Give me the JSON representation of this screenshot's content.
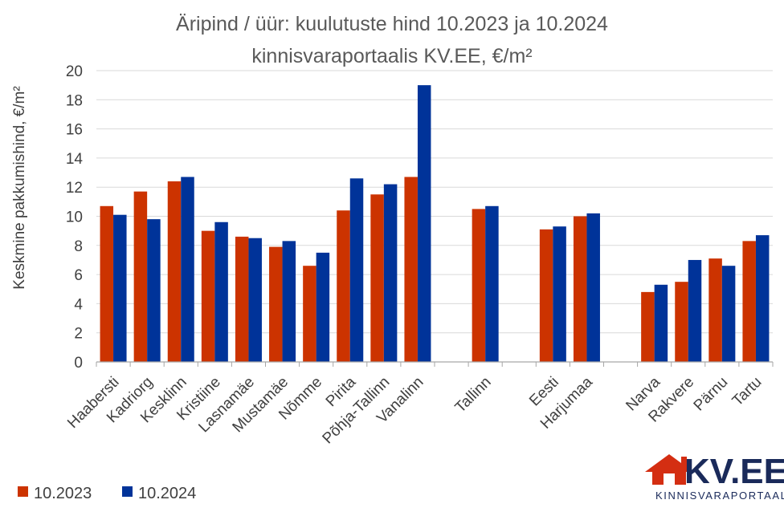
{
  "chart_data": {
    "type": "bar",
    "title": [
      "Äripind / üür: kuulutuste hind 10.2023 ja 10.2024",
      "kinnisvaraportaalis KV.EE, €/m²"
    ],
    "ylabel": "Keskmine pakkumishind, €/m²",
    "xlabel": "",
    "ylim": [
      0,
      20
    ],
    "yticks": [
      0,
      2,
      4,
      6,
      8,
      10,
      12,
      14,
      16,
      18,
      20
    ],
    "grid": true,
    "legend_position": "bottom-left",
    "categories": [
      "Haabersti",
      "Kadriorg",
      "Kesklinn",
      "Kristiine",
      "Lasnamäe",
      "Mustamäe",
      "Nõmme",
      "Pirita",
      "Põhja-Tallinn",
      "Vanalinn",
      "",
      "Tallinn",
      "",
      "Eesti",
      "Harjumaa",
      "",
      "Narva",
      "Rakvere",
      "Pärnu",
      "Tartu"
    ],
    "series": [
      {
        "name": "10.2023",
        "color": "#cc3300",
        "values": [
          10.7,
          11.7,
          12.4,
          9.0,
          8.6,
          7.9,
          6.6,
          10.4,
          11.5,
          12.7,
          null,
          10.5,
          null,
          9.1,
          10.0,
          null,
          4.8,
          5.5,
          7.1,
          8.3
        ]
      },
      {
        "name": "10.2024",
        "color": "#003399",
        "values": [
          10.1,
          9.8,
          12.7,
          9.6,
          8.5,
          8.3,
          7.5,
          12.6,
          12.2,
          19.0,
          null,
          10.7,
          null,
          9.3,
          10.2,
          null,
          5.3,
          7.0,
          6.6,
          8.7
        ]
      }
    ]
  },
  "logo": {
    "main": "KV.EE",
    "sub": "KINNISVARAPORTAAL",
    "accent": "#d42e12",
    "ink": "#1a2a5a"
  }
}
